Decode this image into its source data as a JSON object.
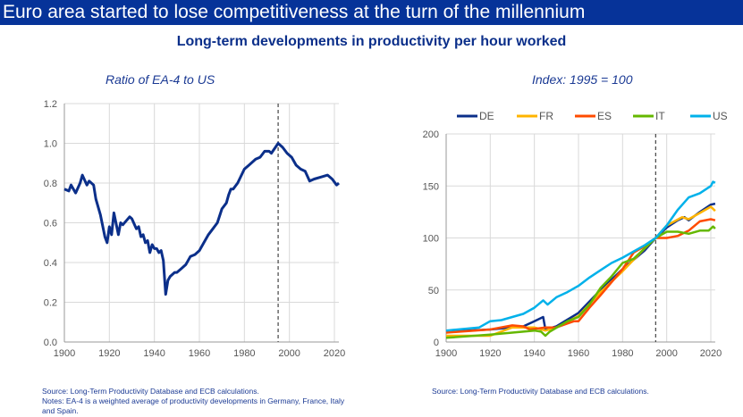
{
  "header": {
    "title": "Euro area started to lose competitiveness at the turn of the millennium",
    "subtitle": "Long-term developments in productivity per hour worked"
  },
  "chart_data": [
    {
      "type": "line",
      "title": "Ratio of EA-4 to US",
      "xlim": [
        1900,
        2022
      ],
      "ylim": [
        0,
        1.2
      ],
      "xticks": [
        1900,
        1920,
        1940,
        1960,
        1980,
        2000,
        2020
      ],
      "yticks": [
        "0.0",
        "0.2",
        "0.4",
        "0.6",
        "0.8",
        "1.0",
        "1.2"
      ],
      "grid": true,
      "reference_line_year": 1995,
      "series": [
        {
          "color": "#0b2f8a",
          "points": [
            [
              1900,
              0.77
            ],
            [
              1902,
              0.76
            ],
            [
              1903,
              0.79
            ],
            [
              1905,
              0.75
            ],
            [
              1907,
              0.8
            ],
            [
              1908,
              0.84
            ],
            [
              1910,
              0.79
            ],
            [
              1911,
              0.81
            ],
            [
              1913,
              0.79
            ],
            [
              1914,
              0.72
            ],
            [
              1916,
              0.64
            ],
            [
              1918,
              0.53
            ],
            [
              1919,
              0.5
            ],
            [
              1920,
              0.58
            ],
            [
              1921,
              0.54
            ],
            [
              1922,
              0.65
            ],
            [
              1924,
              0.54
            ],
            [
              1925,
              0.6
            ],
            [
              1926,
              0.59
            ],
            [
              1929,
              0.63
            ],
            [
              1930,
              0.62
            ],
            [
              1932,
              0.57
            ],
            [
              1933,
              0.58
            ],
            [
              1934,
              0.53
            ],
            [
              1935,
              0.54
            ],
            [
              1936,
              0.5
            ],
            [
              1937,
              0.51
            ],
            [
              1938,
              0.45
            ],
            [
              1939,
              0.49
            ],
            [
              1940,
              0.47
            ],
            [
              1941,
              0.47
            ],
            [
              1942,
              0.45
            ],
            [
              1943,
              0.46
            ],
            [
              1944,
              0.41
            ],
            [
              1945,
              0.24
            ],
            [
              1946,
              0.31
            ],
            [
              1947,
              0.33
            ],
            [
              1949,
              0.35
            ],
            [
              1950,
              0.35
            ],
            [
              1952,
              0.37
            ],
            [
              1954,
              0.39
            ],
            [
              1956,
              0.43
            ],
            [
              1958,
              0.44
            ],
            [
              1960,
              0.46
            ],
            [
              1962,
              0.5
            ],
            [
              1964,
              0.54
            ],
            [
              1966,
              0.57
            ],
            [
              1968,
              0.6
            ],
            [
              1970,
              0.67
            ],
            [
              1972,
              0.7
            ],
            [
              1973,
              0.74
            ],
            [
              1974,
              0.77
            ],
            [
              1975,
              0.77
            ],
            [
              1977,
              0.8
            ],
            [
              1980,
              0.87
            ],
            [
              1982,
              0.89
            ],
            [
              1983,
              0.9
            ],
            [
              1985,
              0.92
            ],
            [
              1987,
              0.93
            ],
            [
              1989,
              0.96
            ],
            [
              1991,
              0.96
            ],
            [
              1992,
              0.95
            ],
            [
              1995,
              1.0
            ],
            [
              1997,
              0.98
            ],
            [
              1999,
              0.95
            ],
            [
              2001,
              0.93
            ],
            [
              2003,
              0.89
            ],
            [
              2005,
              0.87
            ],
            [
              2007,
              0.86
            ],
            [
              2009,
              0.81
            ],
            [
              2011,
              0.82
            ],
            [
              2014,
              0.83
            ],
            [
              2017,
              0.84
            ],
            [
              2019,
              0.82
            ],
            [
              2021,
              0.79
            ],
            [
              2022,
              0.8
            ]
          ]
        }
      ]
    },
    {
      "type": "line",
      "title": "Index: 1995 = 100",
      "xlim": [
        1900,
        2022
      ],
      "ylim": [
        0,
        200
      ],
      "xticks": [
        1900,
        1920,
        1940,
        1960,
        1980,
        2000,
        2020
      ],
      "yticks": [
        "0",
        "50",
        "100",
        "150",
        "200"
      ],
      "grid": true,
      "reference_line_year": 1995,
      "legend": "top",
      "series": [
        {
          "name": "DE",
          "color": "#0b2f8a",
          "points": [
            [
              1900,
              10
            ],
            [
              1920,
              12
            ],
            [
              1935,
              15
            ],
            [
              1940,
              20
            ],
            [
              1944,
              24
            ],
            [
              1945,
              12
            ],
            [
              1950,
              15
            ],
            [
              1960,
              28
            ],
            [
              1970,
              50
            ],
            [
              1980,
              70
            ],
            [
              1990,
              88
            ],
            [
              1995,
              100
            ],
            [
              2000,
              110
            ],
            [
              2005,
              117
            ],
            [
              2008,
              120
            ],
            [
              2010,
              117
            ],
            [
              2015,
              125
            ],
            [
              2020,
              132
            ],
            [
              2022,
              133
            ]
          ]
        },
        {
          "name": "FR",
          "color": "#ffb400",
          "points": [
            [
              1900,
              6
            ],
            [
              1920,
              6
            ],
            [
              1930,
              14
            ],
            [
              1940,
              14
            ],
            [
              1945,
              11
            ],
            [
              1950,
              14
            ],
            [
              1960,
              25
            ],
            [
              1970,
              48
            ],
            [
              1980,
              68
            ],
            [
              1990,
              90
            ],
            [
              1995,
              100
            ],
            [
              2000,
              112
            ],
            [
              2007,
              120
            ],
            [
              2010,
              118
            ],
            [
              2015,
              124
            ],
            [
              2020,
              130
            ],
            [
              2022,
              126
            ]
          ]
        },
        {
          "name": "ES",
          "color": "#ff4b00",
          "points": [
            [
              1900,
              9
            ],
            [
              1920,
              12
            ],
            [
              1930,
              16
            ],
            [
              1935,
              15
            ],
            [
              1938,
              12
            ],
            [
              1945,
              14
            ],
            [
              1950,
              14
            ],
            [
              1958,
              20
            ],
            [
              1960,
              20
            ],
            [
              1965,
              33
            ],
            [
              1970,
              45
            ],
            [
              1980,
              70
            ],
            [
              1985,
              86
            ],
            [
              1990,
              92
            ],
            [
              1995,
              100
            ],
            [
              2000,
              100
            ],
            [
              2005,
              102
            ],
            [
              2010,
              107
            ],
            [
              2015,
              116
            ],
            [
              2020,
              118
            ],
            [
              2022,
              117
            ]
          ]
        },
        {
          "name": "IT",
          "color": "#65b800",
          "points": [
            [
              1900,
              4
            ],
            [
              1920,
              7
            ],
            [
              1930,
              9
            ],
            [
              1940,
              11
            ],
            [
              1943,
              10
            ],
            [
              1945,
              6
            ],
            [
              1947,
              10
            ],
            [
              1955,
              20
            ],
            [
              1960,
              24
            ],
            [
              1965,
              36
            ],
            [
              1970,
              52
            ],
            [
              1975,
              63
            ],
            [
              1980,
              76
            ],
            [
              1985,
              80
            ],
            [
              1990,
              90
            ],
            [
              1995,
              100
            ],
            [
              2000,
              106
            ],
            [
              2005,
              106
            ],
            [
              2010,
              104
            ],
            [
              2015,
              107
            ],
            [
              2019,
              107
            ],
            [
              2021,
              111
            ],
            [
              2022,
              109
            ]
          ]
        },
        {
          "name": "US",
          "color": "#00b1ea",
          "points": [
            [
              1900,
              11
            ],
            [
              1915,
              14
            ],
            [
              1920,
              20
            ],
            [
              1925,
              21
            ],
            [
              1930,
              24
            ],
            [
              1935,
              27
            ],
            [
              1940,
              33
            ],
            [
              1944,
              40
            ],
            [
              1946,
              36
            ],
            [
              1950,
              43
            ],
            [
              1955,
              48
            ],
            [
              1960,
              54
            ],
            [
              1965,
              62
            ],
            [
              1970,
              69
            ],
            [
              1975,
              76
            ],
            [
              1980,
              81
            ],
            [
              1985,
              87
            ],
            [
              1990,
              93
            ],
            [
              1995,
              100
            ],
            [
              2000,
              112
            ],
            [
              2005,
              127
            ],
            [
              2010,
              139
            ],
            [
              2015,
              143
            ],
            [
              2020,
              150
            ],
            [
              2021,
              154
            ],
            [
              2022,
              153
            ]
          ]
        }
      ]
    }
  ],
  "notes": {
    "left_source": "Source: Long-Term Productivity Database and ECB calculations.",
    "left_notes": "Notes: EA-4 is a weighted average of productivity developments in Germany, France, Italy and Spain.",
    "right_source": "Source: Long-Term Productivity Database and ECB calculations."
  }
}
